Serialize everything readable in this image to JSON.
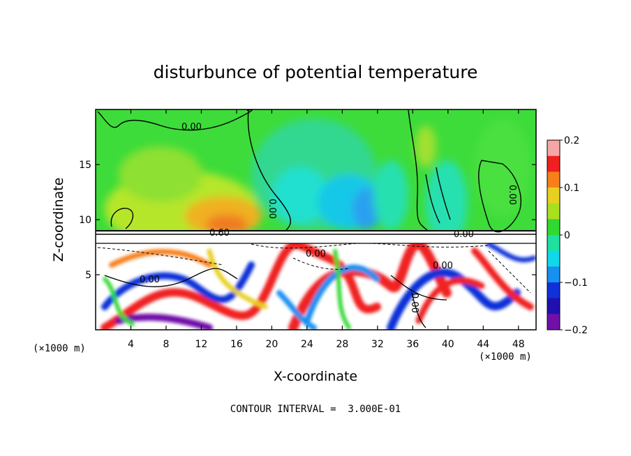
{
  "chart_data": {
    "type": "heatmap",
    "title": "disturbunce of potential temperature",
    "xlabel": "X-coordinate",
    "ylabel": "Z-coordinate",
    "x_unit": "(×1000 m)",
    "y_unit": "(×1000 m)",
    "xlim": [
      0,
      50
    ],
    "ylim": [
      0,
      20
    ],
    "x_ticks": [
      4,
      8,
      12,
      16,
      20,
      24,
      28,
      32,
      36,
      40,
      44,
      48
    ],
    "y_ticks": [
      5,
      10,
      15
    ],
    "colorbar": {
      "range": [
        -0.2,
        0.2
      ],
      "ticks": [
        "0.2",
        "0.1",
        "0",
        "−0.1",
        "−0.2"
      ],
      "colors": [
        "#f7a6a6",
        "#f02020",
        "#f7801a",
        "#e8d020",
        "#a8e020",
        "#30d830",
        "#20e0a0",
        "#10d8e8",
        "#1890f0",
        "#1030d8",
        "#2010b0",
        "#7010a8"
      ]
    },
    "contour_labels": [
      "0.00",
      "0.60",
      "0.00",
      "0.00",
      "0.00",
      "0.00",
      "0.00",
      "0.00",
      "0.00"
    ],
    "contour_interval_text": "CONTOUR INTERVAL =  3.000E-01"
  }
}
